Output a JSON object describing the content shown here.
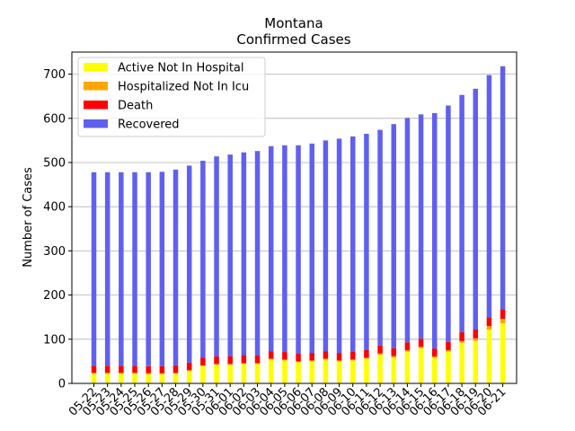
{
  "chart_data": {
    "type": "bar",
    "stacked": true,
    "title": "Montana",
    "subtitle": "Confirmed Cases",
    "xlabel": "",
    "ylabel": "Number of Cases",
    "ylim": [
      0,
      750
    ],
    "yticks": [
      0,
      100,
      200,
      300,
      400,
      500,
      600,
      700
    ],
    "grid": "horizontal",
    "legend_position": "top-left",
    "categories": [
      "05-22",
      "05-23",
      "05-24",
      "05-25",
      "05-26",
      "05-27",
      "05-28",
      "05-29",
      "05-30",
      "05-31",
      "06-01",
      "06-02",
      "06-03",
      "06-04",
      "06-05",
      "06-06",
      "06-07",
      "06-08",
      "06-09",
      "06-10",
      "06-11",
      "06-12",
      "06-13",
      "06-14",
      "06-15",
      "06-16",
      "06-17",
      "06-18",
      "06-19",
      "06-20",
      "06-21"
    ],
    "series": [
      {
        "name": "Active Not In Hospital",
        "color": "#ffff00",
        "values": [
          22,
          22,
          22,
          22,
          21,
          21,
          22,
          28,
          39,
          42,
          42,
          44,
          44,
          54,
          52,
          48,
          50,
          54,
          50,
          52,
          56,
          65,
          59,
          72,
          80,
          58,
          72,
          92,
          96,
          122,
          136
        ]
      },
      {
        "name": "Hospitalized Not In Icu",
        "color": "#ffa500",
        "values": [
          2,
          2,
          2,
          2,
          2,
          2,
          2,
          2,
          2,
          2,
          2,
          2,
          2,
          2,
          2,
          2,
          2,
          2,
          2,
          2,
          2,
          3,
          3,
          3,
          3,
          3,
          3,
          4,
          6,
          8,
          10
        ]
      },
      {
        "name": "Death",
        "color": "#ff0000",
        "values": [
          16,
          16,
          16,
          16,
          16,
          16,
          17,
          17,
          17,
          17,
          17,
          17,
          17,
          17,
          17,
          17,
          17,
          17,
          17,
          18,
          18,
          18,
          18,
          18,
          18,
          18,
          19,
          20,
          20,
          20,
          22
        ]
      },
      {
        "name": "Recovered",
        "color": "#6060f0",
        "values": [
          438,
          438,
          438,
          438,
          439,
          440,
          443,
          446,
          446,
          453,
          457,
          460,
          463,
          464,
          468,
          472,
          474,
          477,
          485,
          487,
          489,
          488,
          507,
          508,
          508,
          533,
          535,
          537,
          545,
          548,
          550
        ]
      }
    ]
  }
}
